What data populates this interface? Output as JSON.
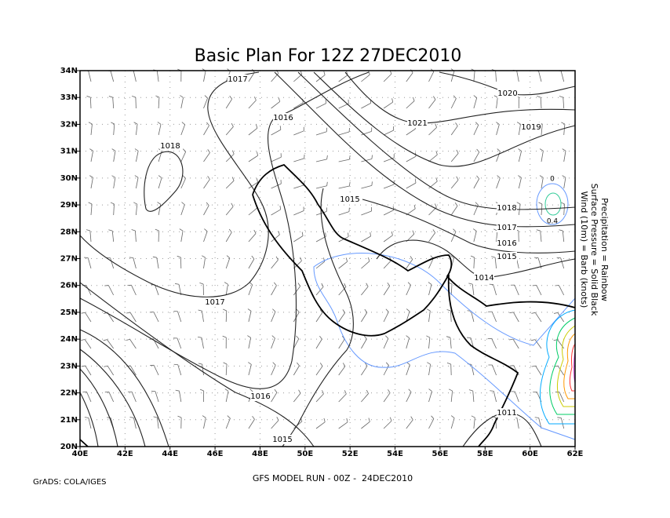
{
  "title": "Basic Plan For 12Z 27DEC2010",
  "lat_labels": [
    "20N",
    "21N",
    "22N",
    "23N",
    "24N",
    "25N",
    "26N",
    "27N",
    "28N",
    "29N",
    "30N",
    "31N",
    "32N",
    "33N",
    "34N"
  ],
  "lon_labels": [
    "40E",
    "42E",
    "44E",
    "46E",
    "48E",
    "50E",
    "52E",
    "54E",
    "56E",
    "58E",
    "60E",
    "62E"
  ],
  "isobar_labels": [
    1017,
    1016,
    1018,
    1015,
    1020,
    1021,
    1019,
    1018,
    1017,
    1016,
    1015,
    1014,
    1017,
    1016,
    1015,
    1011
  ],
  "precip_labels": [
    0,
    0.4
  ],
  "legend": [
    "Precipitation = Rainbow",
    "Surface Pressure = Solid Black",
    "Wind (10m) = Barb (knots)"
  ],
  "footer": {
    "left": "GrADS: COLA/IGES",
    "center": "GFS MODEL RUN - 00Z -  24DEC2010"
  }
}
